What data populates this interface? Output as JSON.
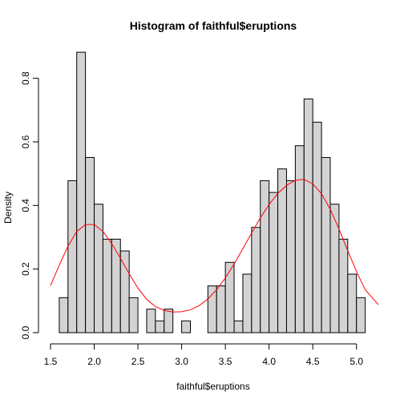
{
  "chart_data": {
    "type": "bar",
    "title": "Histogram of faithful$eruptions",
    "xlabel": "faithful$eruptions",
    "ylabel": "Density",
    "xlim": [
      1.5,
      5.25
    ],
    "ylim": [
      0,
      0.9
    ],
    "x_ticks": [
      1.5,
      2.0,
      2.5,
      3.0,
      3.5,
      4.0,
      4.5,
      5.0
    ],
    "x_tick_labels": [
      "1.5",
      "2.0",
      "2.5",
      "3.0",
      "3.5",
      "4.0",
      "4.5",
      "5.0"
    ],
    "y_ticks": [
      0.0,
      0.2,
      0.4,
      0.6,
      0.8
    ],
    "y_tick_labels": [
      "0.0",
      "0.2",
      "0.4",
      "0.6",
      "0.8"
    ],
    "bin_width": 0.1,
    "bins": [
      {
        "x0": 1.6,
        "x1": 1.7,
        "density": 0.11
      },
      {
        "x0": 1.7,
        "x1": 1.8,
        "density": 0.478
      },
      {
        "x0": 1.8,
        "x1": 1.9,
        "density": 0.882
      },
      {
        "x0": 1.9,
        "x1": 2.0,
        "density": 0.551
      },
      {
        "x0": 2.0,
        "x1": 2.1,
        "density": 0.404
      },
      {
        "x0": 2.1,
        "x1": 2.2,
        "density": 0.294
      },
      {
        "x0": 2.2,
        "x1": 2.3,
        "density": 0.294
      },
      {
        "x0": 2.3,
        "x1": 2.4,
        "density": 0.257
      },
      {
        "x0": 2.4,
        "x1": 2.5,
        "density": 0.11
      },
      {
        "x0": 2.5,
        "x1": 2.6,
        "density": 0.0
      },
      {
        "x0": 2.6,
        "x1": 2.7,
        "density": 0.074
      },
      {
        "x0": 2.7,
        "x1": 2.8,
        "density": 0.037
      },
      {
        "x0": 2.8,
        "x1": 2.9,
        "density": 0.074
      },
      {
        "x0": 2.9,
        "x1": 3.0,
        "density": 0.0
      },
      {
        "x0": 3.0,
        "x1": 3.1,
        "density": 0.037
      },
      {
        "x0": 3.1,
        "x1": 3.2,
        "density": 0.0
      },
      {
        "x0": 3.2,
        "x1": 3.3,
        "density": 0.0
      },
      {
        "x0": 3.3,
        "x1": 3.4,
        "density": 0.147
      },
      {
        "x0": 3.4,
        "x1": 3.5,
        "density": 0.147
      },
      {
        "x0": 3.5,
        "x1": 3.6,
        "density": 0.221
      },
      {
        "x0": 3.6,
        "x1": 3.7,
        "density": 0.037
      },
      {
        "x0": 3.7,
        "x1": 3.8,
        "density": 0.184
      },
      {
        "x0": 3.8,
        "x1": 3.9,
        "density": 0.331
      },
      {
        "x0": 3.9,
        "x1": 4.0,
        "density": 0.478
      },
      {
        "x0": 4.0,
        "x1": 4.1,
        "density": 0.441
      },
      {
        "x0": 4.1,
        "x1": 4.2,
        "density": 0.515
      },
      {
        "x0": 4.2,
        "x1": 4.3,
        "density": 0.478
      },
      {
        "x0": 4.3,
        "x1": 4.4,
        "density": 0.588
      },
      {
        "x0": 4.4,
        "x1": 4.5,
        "density": 0.735
      },
      {
        "x0": 4.5,
        "x1": 4.6,
        "density": 0.662
      },
      {
        "x0": 4.6,
        "x1": 4.7,
        "density": 0.551
      },
      {
        "x0": 4.7,
        "x1": 4.8,
        "density": 0.404
      },
      {
        "x0": 4.8,
        "x1": 4.9,
        "density": 0.294
      },
      {
        "x0": 4.9,
        "x1": 5.0,
        "density": 0.184
      },
      {
        "x0": 5.0,
        "x1": 5.1,
        "density": 0.11
      }
    ],
    "density_curve": {
      "color": "#ff0000",
      "points": [
        [
          1.5,
          0.148
        ],
        [
          1.6,
          0.212
        ],
        [
          1.7,
          0.272
        ],
        [
          1.8,
          0.318
        ],
        [
          1.9,
          0.34
        ],
        [
          2.0,
          0.34
        ],
        [
          2.1,
          0.318
        ],
        [
          2.2,
          0.28
        ],
        [
          2.3,
          0.234
        ],
        [
          2.4,
          0.185
        ],
        [
          2.5,
          0.14
        ],
        [
          2.6,
          0.105
        ],
        [
          2.7,
          0.082
        ],
        [
          2.8,
          0.07
        ],
        [
          2.9,
          0.065
        ],
        [
          3.0,
          0.066
        ],
        [
          3.1,
          0.072
        ],
        [
          3.2,
          0.085
        ],
        [
          3.3,
          0.106
        ],
        [
          3.4,
          0.135
        ],
        [
          3.5,
          0.172
        ],
        [
          3.6,
          0.216
        ],
        [
          3.7,
          0.264
        ],
        [
          3.8,
          0.313
        ],
        [
          3.9,
          0.361
        ],
        [
          4.0,
          0.403
        ],
        [
          4.1,
          0.438
        ],
        [
          4.2,
          0.463
        ],
        [
          4.3,
          0.479
        ],
        [
          4.4,
          0.482
        ],
        [
          4.5,
          0.468
        ],
        [
          4.6,
          0.437
        ],
        [
          4.7,
          0.388
        ],
        [
          4.8,
          0.326
        ],
        [
          4.9,
          0.258
        ],
        [
          5.0,
          0.192
        ],
        [
          5.1,
          0.135
        ],
        [
          5.25,
          0.088
        ]
      ]
    },
    "bar_fill": "#d3d3d3",
    "bar_stroke": "#000000",
    "grid": false,
    "legend": "none"
  }
}
